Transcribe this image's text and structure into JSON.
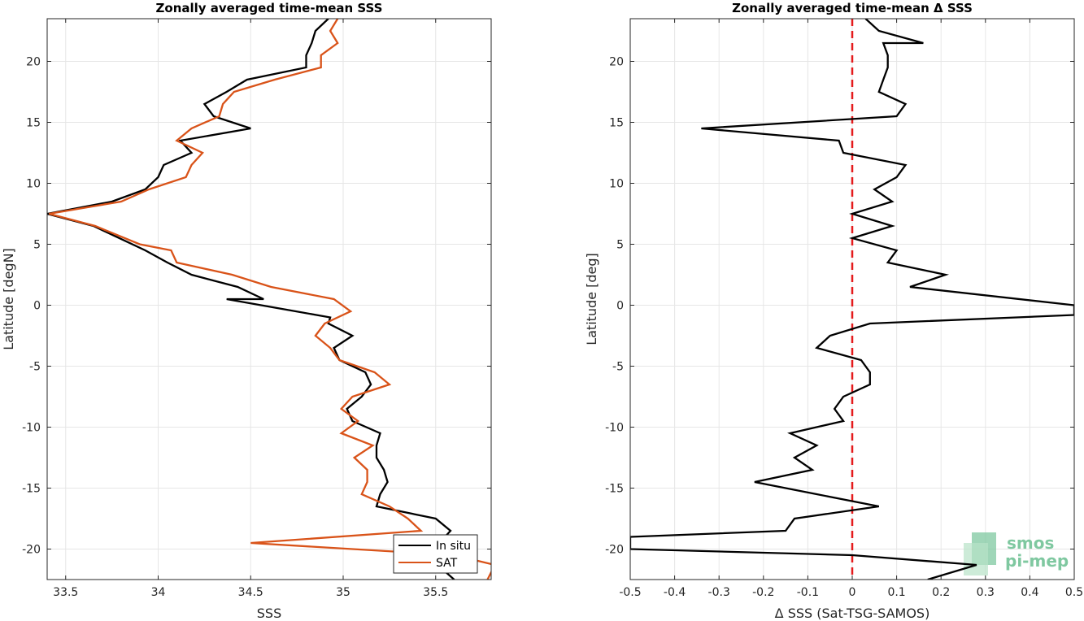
{
  "chart_data": [
    {
      "type": "line",
      "title": "Zonally averaged time-mean SSS",
      "xlabel": "SSS",
      "ylabel": "Latitude [degN]",
      "xlim": [
        33.4,
        35.8
      ],
      "ylim": [
        -22.5,
        23.5
      ],
      "xticks": [
        33.5,
        34,
        34.5,
        35,
        35.5
      ],
      "xtick_labels": [
        "33.5",
        "34",
        "34.5",
        "35",
        "35.5"
      ],
      "yticks": [
        -20,
        -15,
        -10,
        -5,
        0,
        5,
        10,
        15,
        20
      ],
      "ytick_labels": [
        "-20",
        "-15",
        "-10",
        "-5",
        "0",
        "5",
        "10",
        "15",
        "20"
      ],
      "grid": true,
      "legend": "bottom-right",
      "series": [
        {
          "name": "In situ",
          "color": "#000000",
          "points": [
            [
              35.6,
              -22.5
            ],
            [
              35.45,
              -20.5
            ],
            [
              35.52,
              -19.5
            ],
            [
              35.58,
              -18.5
            ],
            [
              35.5,
              -17.5
            ],
            [
              35.18,
              -16.5
            ],
            [
              35.2,
              -15.5
            ],
            [
              35.24,
              -14.5
            ],
            [
              35.22,
              -13.5
            ],
            [
              35.18,
              -12.5
            ],
            [
              35.18,
              -11.5
            ],
            [
              35.2,
              -10.5
            ],
            [
              35.05,
              -9.5
            ],
            [
              35.02,
              -8.5
            ],
            [
              35.1,
              -7.5
            ],
            [
              35.15,
              -6.5
            ],
            [
              35.12,
              -5.5
            ],
            [
              34.98,
              -4.5
            ],
            [
              34.95,
              -3.5
            ],
            [
              35.05,
              -2.5
            ],
            [
              34.92,
              -1.5
            ],
            [
              34.93,
              -1.0
            ],
            [
              34.37,
              0.5
            ],
            [
              34.57,
              0.5
            ],
            [
              34.43,
              1.5
            ],
            [
              34.18,
              2.5
            ],
            [
              34.05,
              3.5
            ],
            [
              33.93,
              4.5
            ],
            [
              33.65,
              6.5
            ],
            [
              33.4,
              7.5
            ],
            [
              33.75,
              8.5
            ],
            [
              33.93,
              9.5
            ],
            [
              34.0,
              10.5
            ],
            [
              34.03,
              11.5
            ],
            [
              34.18,
              12.5
            ],
            [
              34.12,
              13.5
            ],
            [
              34.5,
              14.5
            ],
            [
              34.3,
              15.5
            ],
            [
              34.25,
              16.5
            ],
            [
              34.37,
              17.5
            ],
            [
              34.48,
              18.5
            ],
            [
              34.8,
              19.5
            ],
            [
              34.8,
              20.5
            ],
            [
              34.83,
              21.5
            ],
            [
              34.85,
              22.5
            ],
            [
              34.92,
              23.5
            ]
          ]
        },
        {
          "name": "SAT",
          "color": "#D95319",
          "points": [
            [
              35.78,
              -22.5
            ],
            [
              35.82,
              -21.3
            ],
            [
              35.6,
              -20.5
            ],
            [
              34.5,
              -19.5
            ],
            [
              35.42,
              -18.5
            ],
            [
              35.35,
              -17.5
            ],
            [
              35.25,
              -16.5
            ],
            [
              35.1,
              -15.5
            ],
            [
              35.13,
              -14.5
            ],
            [
              35.13,
              -13.5
            ],
            [
              35.06,
              -12.5
            ],
            [
              35.16,
              -11.5
            ],
            [
              34.99,
              -10.5
            ],
            [
              35.08,
              -9.5
            ],
            [
              34.99,
              -8.5
            ],
            [
              35.05,
              -7.5
            ],
            [
              35.25,
              -6.5
            ],
            [
              35.17,
              -5.5
            ],
            [
              34.98,
              -4.5
            ],
            [
              34.93,
              -3.5
            ],
            [
              34.85,
              -2.5
            ],
            [
              34.9,
              -1.5
            ],
            [
              35.04,
              -0.5
            ],
            [
              34.95,
              0.5
            ],
            [
              34.61,
              1.5
            ],
            [
              34.4,
              2.5
            ],
            [
              34.1,
              3.5
            ],
            [
              34.07,
              4.5
            ],
            [
              33.9,
              5.0
            ],
            [
              33.66,
              6.5
            ],
            [
              33.41,
              7.5
            ],
            [
              33.8,
              8.5
            ],
            [
              33.95,
              9.5
            ],
            [
              34.15,
              10.5
            ],
            [
              34.18,
              11.5
            ],
            [
              34.24,
              12.5
            ],
            [
              34.1,
              13.5
            ],
            [
              34.18,
              14.5
            ],
            [
              34.33,
              15.5
            ],
            [
              34.35,
              16.5
            ],
            [
              34.41,
              17.5
            ],
            [
              34.63,
              18.5
            ],
            [
              34.88,
              19.5
            ],
            [
              34.88,
              20.5
            ],
            [
              34.97,
              21.5
            ],
            [
              34.93,
              22.5
            ],
            [
              34.97,
              23.5
            ]
          ]
        }
      ]
    },
    {
      "type": "line",
      "title": "Zonally averaged time-mean Δ SSS",
      "xlabel": "Δ SSS (Sat-TSG-SAMOS)",
      "ylabel": "Latitude [deg]",
      "xlim": [
        -0.5,
        0.5
      ],
      "ylim": [
        -22.5,
        23.5
      ],
      "xticks": [
        -0.5,
        -0.4,
        -0.3,
        -0.2,
        -0.1,
        0,
        0.1,
        0.2,
        0.3,
        0.4,
        0.5
      ],
      "xtick_labels": [
        "-0.5",
        "-0.4",
        "-0.3",
        "-0.2",
        "-0.1",
        "0",
        "0.1",
        "0.2",
        "0.3",
        "0.4",
        "0.5"
      ],
      "yticks": [
        -20,
        -15,
        -10,
        -5,
        0,
        5,
        10,
        15,
        20
      ],
      "ytick_labels": [
        "-20",
        "-15",
        "-10",
        "-5",
        "0",
        "5",
        "10",
        "15",
        "20"
      ],
      "grid": true,
      "reference_line": {
        "x": 0,
        "color": "#e41a1c",
        "style": "dashed"
      },
      "series": [
        {
          "color": "#000000",
          "points": [
            [
              0.17,
              -22.5
            ],
            [
              0.28,
              -21.3
            ],
            [
              0.0,
              -20.5
            ],
            [
              -0.5,
              -20.0
            ],
            [
              -0.5,
              -19.0
            ],
            [
              -0.15,
              -18.5
            ],
            [
              -0.13,
              -17.5
            ],
            [
              0.06,
              -16.5
            ],
            [
              -0.08,
              -15.5
            ],
            [
              -0.22,
              -14.5
            ],
            [
              -0.09,
              -13.5
            ],
            [
              -0.13,
              -12.5
            ],
            [
              -0.08,
              -11.5
            ],
            [
              -0.14,
              -10.5
            ],
            [
              -0.02,
              -9.5
            ],
            [
              -0.04,
              -8.5
            ],
            [
              -0.02,
              -7.5
            ],
            [
              0.04,
              -6.5
            ],
            [
              0.04,
              -5.5
            ],
            [
              0.02,
              -4.5
            ],
            [
              -0.08,
              -3.5
            ],
            [
              -0.05,
              -2.5
            ],
            [
              0.04,
              -1.5
            ],
            [
              0.5,
              -0.8
            ],
            [
              0.5,
              0.0
            ],
            [
              0.13,
              1.5
            ],
            [
              0.21,
              2.5
            ],
            [
              0.08,
              3.5
            ],
            [
              0.1,
              4.5
            ],
            [
              0.0,
              5.5
            ],
            [
              0.09,
              6.5
            ],
            [
              0.0,
              7.5
            ],
            [
              0.09,
              8.5
            ],
            [
              0.05,
              9.5
            ],
            [
              0.1,
              10.5
            ],
            [
              0.12,
              11.5
            ],
            [
              -0.02,
              12.5
            ],
            [
              -0.03,
              13.5
            ],
            [
              -0.34,
              14.5
            ],
            [
              0.1,
              15.5
            ],
            [
              0.12,
              16.5
            ],
            [
              0.06,
              17.5
            ],
            [
              0.07,
              18.5
            ],
            [
              0.08,
              19.5
            ],
            [
              0.08,
              20.5
            ],
            [
              0.07,
              21.5
            ],
            [
              0.16,
              21.5
            ],
            [
              0.06,
              22.5
            ],
            [
              0.03,
              23.5
            ]
          ]
        }
      ]
    }
  ],
  "logo": {
    "line1": "smos",
    "line2": "pi-mep"
  }
}
